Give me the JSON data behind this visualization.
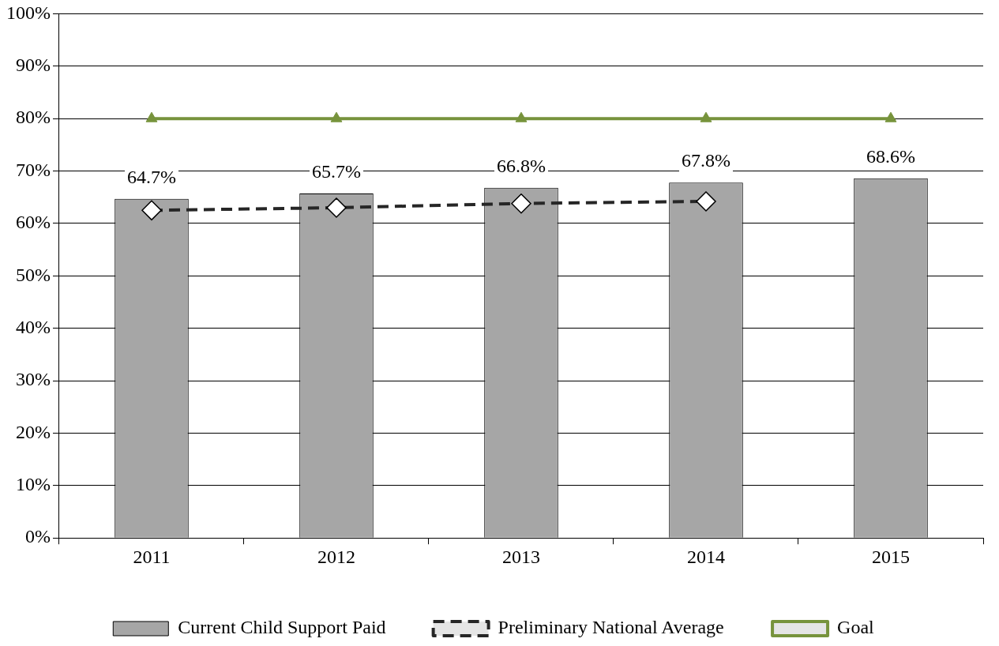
{
  "chart_data": {
    "type": "bar",
    "categories": [
      "2011",
      "2012",
      "2013",
      "2014",
      "2015"
    ],
    "series": [
      {
        "name": "Current Child Support Paid",
        "color": "#a6a6a6",
        "values": [
          64.7,
          65.7,
          66.8,
          67.8,
          68.6
        ],
        "value_labels": [
          "64.7%",
          "65.7%",
          "66.8%",
          "67.8%",
          "68.6%"
        ]
      },
      {
        "name": "Preliminary National Average",
        "type": "line",
        "color": "#262626",
        "marker": "diamond",
        "line_style": "dashed",
        "values": [
          62.5,
          63.0,
          63.8,
          64.2,
          null
        ]
      },
      {
        "name": "Goal",
        "type": "line",
        "color": "#77933c",
        "marker": "triangle",
        "line_style": "solid",
        "values": [
          80,
          80,
          80,
          80,
          80
        ]
      }
    ],
    "ylim": [
      0,
      100
    ],
    "yticks": [
      {
        "value": 0,
        "label": "0%"
      },
      {
        "value": 10,
        "label": "10%"
      },
      {
        "value": 20,
        "label": "20%"
      },
      {
        "value": 30,
        "label": "30%"
      },
      {
        "value": 40,
        "label": "40%"
      },
      {
        "value": 50,
        "label": "50%"
      },
      {
        "value": 60,
        "label": "60%"
      },
      {
        "value": 70,
        "label": "70%"
      },
      {
        "value": 80,
        "label": "80%"
      },
      {
        "value": 90,
        "label": "90%"
      },
      {
        "value": 100,
        "label": "100%"
      }
    ],
    "grid": "y",
    "legend": "bottom"
  }
}
